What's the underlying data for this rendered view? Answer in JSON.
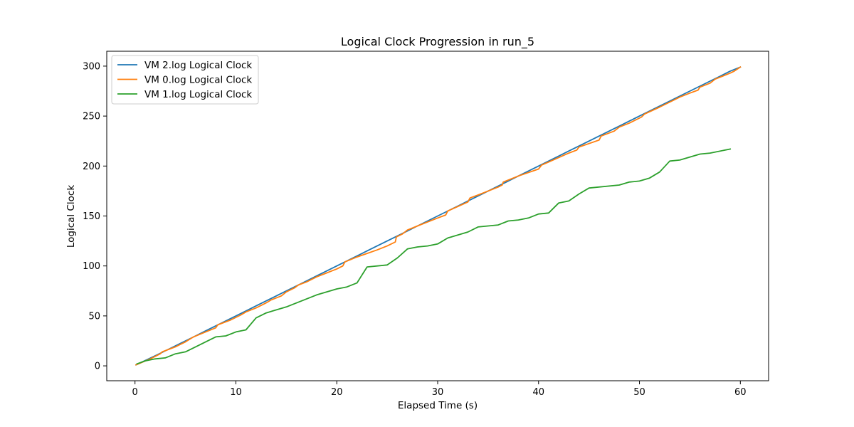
{
  "chart_data": {
    "type": "line",
    "title": "Logical Clock Progression in run_5",
    "xlabel": "Elapsed Time (s)",
    "ylabel": "Logical Clock",
    "xlim": [
      -2.8,
      62.8
    ],
    "ylim": [
      -14.9,
      314.9
    ],
    "xticks": [
      0,
      10,
      20,
      30,
      40,
      50,
      60
    ],
    "yticks": [
      0,
      50,
      100,
      150,
      200,
      250,
      300
    ],
    "grid": false,
    "legend_position": "top-left",
    "series": [
      {
        "name": "VM 2.log Logical Clock",
        "color": "#1f77b4",
        "points": [
          [
            0.1,
            1
          ],
          [
            2,
            10
          ],
          [
            3,
            15
          ],
          [
            4,
            20
          ],
          [
            5,
            25
          ],
          [
            6,
            30
          ],
          [
            7,
            35
          ],
          [
            8,
            40
          ],
          [
            9,
            45
          ],
          [
            10,
            50
          ],
          [
            11,
            55
          ],
          [
            12,
            60
          ],
          [
            13,
            65
          ],
          [
            14,
            70
          ],
          [
            15,
            75
          ],
          [
            16,
            80
          ],
          [
            17,
            85
          ],
          [
            18,
            90
          ],
          [
            19,
            95
          ],
          [
            20,
            100
          ],
          [
            21,
            105
          ],
          [
            22,
            110
          ],
          [
            23,
            115
          ],
          [
            24,
            120
          ],
          [
            25,
            125
          ],
          [
            26,
            130
          ],
          [
            27,
            135
          ],
          [
            28,
            140
          ],
          [
            29,
            145
          ],
          [
            30,
            150
          ],
          [
            31,
            155
          ],
          [
            32,
            160
          ],
          [
            33,
            165
          ],
          [
            34,
            170
          ],
          [
            35,
            175
          ],
          [
            36,
            180
          ],
          [
            37,
            185
          ],
          [
            38,
            190
          ],
          [
            39,
            195
          ],
          [
            40,
            200
          ],
          [
            41,
            205
          ],
          [
            42,
            210
          ],
          [
            43,
            215
          ],
          [
            44,
            220
          ],
          [
            45,
            225
          ],
          [
            46,
            230
          ],
          [
            47,
            235
          ],
          [
            48,
            240
          ],
          [
            49,
            245
          ],
          [
            50,
            250
          ],
          [
            51,
            255
          ],
          [
            52,
            260
          ],
          [
            53,
            265
          ],
          [
            54,
            270
          ],
          [
            55,
            275
          ],
          [
            56,
            280
          ],
          [
            57,
            285
          ],
          [
            58,
            290
          ],
          [
            59,
            295
          ],
          [
            60,
            299
          ]
        ]
      },
      {
        "name": "VM 0.log Logical Clock",
        "color": "#ff7f0e",
        "points": [
          [
            0.1,
            1
          ],
          [
            1.5,
            7
          ],
          [
            2.5,
            12
          ],
          [
            2.7,
            14
          ],
          [
            4,
            19
          ],
          [
            5,
            24
          ],
          [
            5.8,
            29
          ],
          [
            7,
            34
          ],
          [
            8,
            38
          ],
          [
            8.2,
            41
          ],
          [
            9.5,
            46
          ],
          [
            10.5,
            51
          ],
          [
            11,
            54
          ],
          [
            12,
            58
          ],
          [
            13,
            63
          ],
          [
            13.5,
            66
          ],
          [
            14.5,
            70
          ],
          [
            15,
            74
          ],
          [
            15.8,
            78
          ],
          [
            16.2,
            81
          ],
          [
            17,
            84
          ],
          [
            18,
            89
          ],
          [
            19,
            93
          ],
          [
            20,
            97
          ],
          [
            20.6,
            100
          ],
          [
            20.8,
            104
          ],
          [
            22,
            109
          ],
          [
            24,
            116
          ],
          [
            25,
            120
          ],
          [
            25.8,
            124
          ],
          [
            25.9,
            129
          ],
          [
            26.5,
            132
          ],
          [
            27,
            136
          ],
          [
            28,
            140
          ],
          [
            29,
            144
          ],
          [
            30,
            148
          ],
          [
            30.8,
            151
          ],
          [
            31,
            155
          ],
          [
            33,
            164
          ],
          [
            33.2,
            168
          ],
          [
            34,
            171
          ],
          [
            35,
            175
          ],
          [
            36,
            179
          ],
          [
            36.4,
            181
          ],
          [
            36.5,
            184
          ],
          [
            38,
            190
          ],
          [
            40,
            197
          ],
          [
            40.3,
            201
          ],
          [
            41,
            204
          ],
          [
            43,
            213
          ],
          [
            43.8,
            216
          ],
          [
            44,
            219
          ],
          [
            46,
            226
          ],
          [
            46.2,
            230
          ],
          [
            47.5,
            235
          ],
          [
            48,
            239
          ],
          [
            49,
            243
          ],
          [
            50.2,
            249
          ],
          [
            50.5,
            252
          ],
          [
            52,
            259
          ],
          [
            53,
            264
          ],
          [
            54,
            269
          ],
          [
            55,
            273
          ],
          [
            55.8,
            276
          ],
          [
            56,
            279
          ],
          [
            57,
            283
          ],
          [
            57.5,
            287
          ],
          [
            59,
            293
          ],
          [
            59.4,
            295
          ],
          [
            60,
            299
          ]
        ]
      },
      {
        "name": "VM 1.log Logical Clock",
        "color": "#2ca02c",
        "points": [
          [
            0.2,
            2
          ],
          [
            1,
            5
          ],
          [
            2,
            7
          ],
          [
            3,
            8
          ],
          [
            4,
            12
          ],
          [
            5,
            14
          ],
          [
            6,
            19
          ],
          [
            7,
            24
          ],
          [
            8,
            29
          ],
          [
            9,
            30
          ],
          [
            10,
            34
          ],
          [
            11,
            36
          ],
          [
            12,
            48
          ],
          [
            13,
            53
          ],
          [
            15,
            59
          ],
          [
            18,
            71
          ],
          [
            20,
            77
          ],
          [
            21,
            79
          ],
          [
            22,
            83
          ],
          [
            23,
            99
          ],
          [
            25,
            101
          ],
          [
            26,
            108
          ],
          [
            27,
            117
          ],
          [
            28,
            119
          ],
          [
            29,
            120
          ],
          [
            30,
            122
          ],
          [
            31,
            128
          ],
          [
            33,
            134
          ],
          [
            34,
            139
          ],
          [
            36,
            141
          ],
          [
            37,
            145
          ],
          [
            38,
            146
          ],
          [
            39,
            148
          ],
          [
            40,
            152
          ],
          [
            41,
            153
          ],
          [
            42,
            163
          ],
          [
            43,
            165
          ],
          [
            44,
            172
          ],
          [
            45,
            178
          ],
          [
            48,
            181
          ],
          [
            49,
            184
          ],
          [
            50,
            185
          ],
          [
            51,
            188
          ],
          [
            52,
            194
          ],
          [
            53,
            205
          ],
          [
            54,
            206
          ],
          [
            56,
            212
          ],
          [
            57,
            213
          ],
          [
            59,
            217
          ]
        ]
      }
    ]
  }
}
